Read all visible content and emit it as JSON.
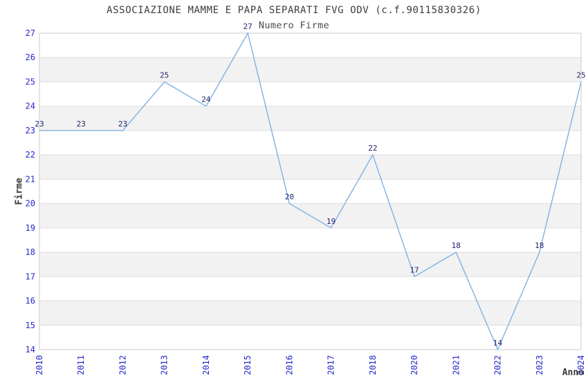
{
  "chart_data": {
    "type": "line",
    "title": "ASSOCIAZIONE MAMME E PAPA SEPARATI FVG ODV (c.f.90115830326)",
    "subtitle": "Numero Firme",
    "xlabel": "Anno",
    "ylabel": "Firme",
    "categories": [
      "2010",
      "2011",
      "2012",
      "2013",
      "2014",
      "2015",
      "2016",
      "2017",
      "2018",
      "2020",
      "2021",
      "2022",
      "2023",
      "2024"
    ],
    "values": [
      23,
      23,
      23,
      25,
      24,
      27,
      20,
      19,
      22,
      17,
      18,
      14,
      18,
      25
    ],
    "ylim": [
      14,
      27
    ],
    "ytick_step": 1,
    "xtick_rotation": 90,
    "grid": "horizontal",
    "band_fill": "alternate-unit-rows",
    "legend": "none",
    "markers": "none",
    "data_labels": "above-points",
    "colors": {
      "line": "#7db1e4",
      "tick_label": "#2626cd",
      "data_label": "#1e1e6e",
      "band": "#f2f2f2",
      "gridline": "#dedede",
      "border": "#c9c9c9",
      "title": "#3c3c3c",
      "subtitle": "#4c4c4c",
      "axis_label": "#3a3a3a",
      "background": "#ffffff"
    }
  }
}
